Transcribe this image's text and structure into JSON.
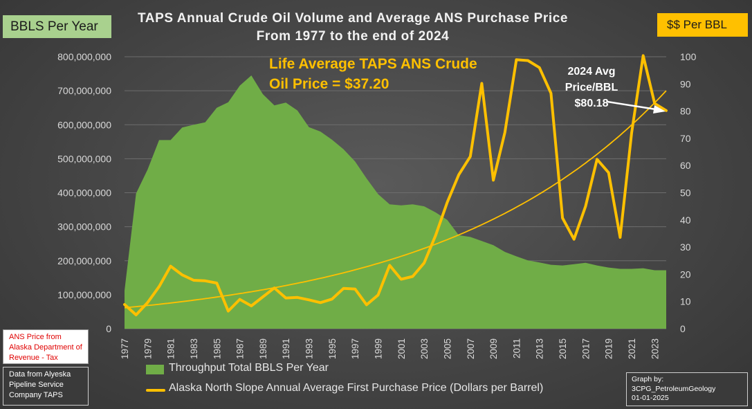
{
  "title_line1": "TAPS Annual Crude Oil Volume and Average ANS Purchase Price",
  "title_line2": "From 1977 to the end of 2024",
  "left_axis_label": "BBLS Per Year",
  "right_axis_label": "$$ Per BBL",
  "annotation_life_avg_line1": "Life Average TAPS ANS Crude",
  "annotation_life_avg_line2": "Oil Price = $37.20",
  "annotation_2024_line1": "2024 Avg",
  "annotation_2024_line2": "Price/BBL",
  "annotation_2024_line3": "$80.18",
  "source_price": "ANS Price from Alaska Department of Revenue - Tax",
  "source_data": "Data from Alyeska Pipeline Service Company TAPS",
  "credit_line1": "Graph by:",
  "credit_line2": "3CPG_PetroleumGeology",
  "credit_line3": "01-01-2025",
  "colors": {
    "area": "#70ad47",
    "line": "#ffc000",
    "trend": "#ffc000",
    "axis_text": "#d9d9d9",
    "grid": "#6e6e6e"
  },
  "chart_data": {
    "type": "area+line",
    "title": "TAPS Annual Crude Oil Volume and Average ANS Purchase Price From 1977 to the end of 2024",
    "years": [
      1977,
      1978,
      1979,
      1980,
      1981,
      1982,
      1983,
      1984,
      1985,
      1986,
      1987,
      1988,
      1989,
      1990,
      1991,
      1992,
      1993,
      1994,
      1995,
      1996,
      1997,
      1998,
      1999,
      2000,
      2001,
      2002,
      2003,
      2004,
      2005,
      2006,
      2007,
      2008,
      2009,
      2010,
      2011,
      2012,
      2013,
      2014,
      2015,
      2016,
      2017,
      2018,
      2019,
      2020,
      2021,
      2022,
      2023,
      2024
    ],
    "x_tick_labels": [
      "1977",
      "1979",
      "1981",
      "1983",
      "1985",
      "1987",
      "1989",
      "1991",
      "1993",
      "1995",
      "1997",
      "1999",
      "2001",
      "2003",
      "2005",
      "2007",
      "2009",
      "2011",
      "2013",
      "2015",
      "2017",
      "2019",
      "2021",
      "2023"
    ],
    "series": [
      {
        "name": "Throughput Total BBLS Per Year",
        "type": "area",
        "axis": "left",
        "values": [
          112000000,
          398000000,
          468000000,
          555000000,
          555000000,
          592000000,
          600000000,
          607000000,
          650000000,
          666000000,
          715000000,
          745000000,
          690000000,
          657000000,
          665000000,
          642000000,
          593000000,
          580000000,
          556000000,
          528000000,
          492000000,
          442000000,
          396000000,
          366000000,
          363000000,
          366000000,
          360000000,
          342000000,
          320000000,
          275000000,
          270000000,
          258000000,
          246000000,
          226000000,
          213000000,
          201000000,
          195000000,
          188000000,
          186000000,
          190000000,
          194000000,
          186000000,
          180000000,
          176000000,
          176000000,
          178000000,
          172000000,
          172000000
        ]
      },
      {
        "name": "Alaska North Slope Annual Average First Purchase Price (Dollars per Barrel)",
        "type": "line",
        "axis": "right",
        "values": [
          8.9,
          5.1,
          9.6,
          15.5,
          23.0,
          19.8,
          17.8,
          17.6,
          16.8,
          6.5,
          10.8,
          8.4,
          11.7,
          15.0,
          11.3,
          11.5,
          10.6,
          9.6,
          10.9,
          14.8,
          14.6,
          8.8,
          12.4,
          23.3,
          18.2,
          19.2,
          24.2,
          34.4,
          46.5,
          56.6,
          63.3,
          90.2,
          54.6,
          72.2,
          98.9,
          98.6,
          96.0,
          86.6,
          40.7,
          32.9,
          45.0,
          62.3,
          57.4,
          33.6,
          72.0,
          100.4,
          82.8,
          80.2
        ]
      }
    ],
    "trendline": {
      "name": "Exponential trend",
      "start_value": 7.7,
      "end_value": 87.5
    },
    "left_axis": {
      "label": "BBLS Per Year",
      "min": 0,
      "max": 800000000,
      "step": 100000000,
      "tick_labels": [
        "0",
        "100,000,000",
        "200,000,000",
        "300,000,000",
        "400,000,000",
        "500,000,000",
        "600,000,000",
        "700,000,000",
        "800,000,000"
      ]
    },
    "right_axis": {
      "label": "$$ Per BBL",
      "min": 0,
      "max": 100,
      "step": 10,
      "tick_labels": [
        "0",
        "10",
        "20",
        "30",
        "40",
        "50",
        "60",
        "70",
        "80",
        "90",
        "100"
      ]
    },
    "legend": [
      "Throughput Total BBLS Per Year",
      "Alaska North Slope Annual Average First Purchase Price (Dollars per Barrel)"
    ],
    "life_average_price": 37.2,
    "price_2024": 80.18
  }
}
